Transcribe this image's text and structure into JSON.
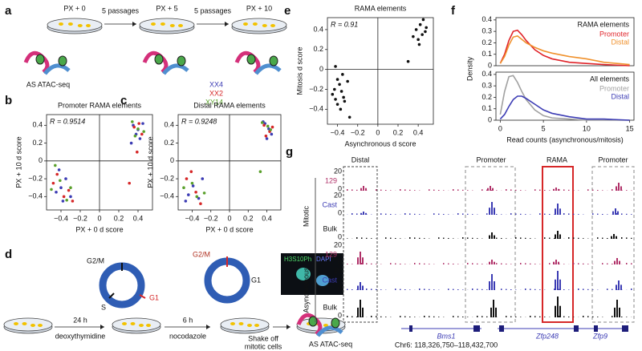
{
  "panel_labels": [
    "a",
    "b",
    "c",
    "d",
    "e",
    "f",
    "g"
  ],
  "panel_a": {
    "stages": [
      "PX + 0",
      "PX + 5",
      "PX + 10"
    ],
    "steps": [
      "5 passages",
      "5 passages"
    ],
    "method": "AS ATAC-seq"
  },
  "panel_d": {
    "cycle_1": [
      "G2/M",
      "S",
      "G1"
    ],
    "cycle_2": [
      "G2/M",
      "G1"
    ],
    "steps": [
      {
        "top": "24 h",
        "bottom": "deoxythymidine"
      },
      {
        "top": "6 h",
        "bottom": "nocodazole"
      },
      {
        "top": "Shake off",
        "bottom": "mitotic cells"
      }
    ],
    "stains": [
      "H3S10Ph",
      "DAPI"
    ],
    "method": "AS ATAC-seq"
  },
  "panel_g": {
    "regions": [
      "Distal",
      "Promoter",
      "RAMA",
      "Promoter"
    ],
    "conditions": [
      "Mitotic",
      "Asynchronous"
    ],
    "tracks": [
      "129",
      "Cast",
      "Bulk"
    ],
    "scale_max": 20,
    "scale_min": 0,
    "genes": [
      "Bms1",
      "Zfp248",
      "Zfp9"
    ],
    "locus": "Chr6: 118,326,750–118,432,700"
  },
  "chart_data": [
    {
      "type": "scatter",
      "title": "Promoter RAMA elements",
      "annotation": "R = 0.9514",
      "xlabel": "PX + 0 d score",
      "ylabel": "PX + 10 d score",
      "xlim": [
        -0.55,
        0.55
      ],
      "ylim": [
        -0.55,
        0.52
      ],
      "xticks": [
        {
          "value": -0.4,
          "label": "−0.4"
        },
        {
          "value": -0.2,
          "label": "−0.2"
        },
        0,
        0.2,
        0.4
      ],
      "yticks": [
        {
          "value": -0.4,
          "label": "−0.4"
        },
        {
          "value": -0.2,
          "label": "−0.2"
        },
        0,
        0.2,
        0.4
      ],
      "series": [
        {
          "name": "XX4",
          "color": "#3c3cb4",
          "x": [
            -0.45,
            -0.4,
            -0.35,
            -0.3,
            -0.42,
            -0.38,
            0.35,
            0.4,
            0.42,
            0.45,
            0.38,
            0.33
          ],
          "values": [
            -0.35,
            -0.3,
            -0.2,
            -0.4,
            -0.1,
            -0.45,
            0.4,
            0.35,
            0.25,
            0.42,
            0.3,
            0.2
          ]
        },
        {
          "name": "XX2",
          "color": "#d62728",
          "x": [
            -0.48,
            -0.37,
            -0.32,
            -0.44,
            -0.28,
            0.36,
            0.41,
            0.44,
            0.39,
            0.31
          ],
          "values": [
            -0.25,
            -0.4,
            -0.33,
            -0.15,
            -0.45,
            0.38,
            0.42,
            0.3,
            0.1,
            -0.25
          ]
        },
        {
          "name": "XY14",
          "color": "#5aa02c",
          "x": [
            -0.5,
            -0.41,
            -0.34,
            -0.3,
            -0.46,
            0.34,
            0.4,
            0.46,
            0.37
          ],
          "values": [
            -0.32,
            -0.22,
            -0.44,
            -0.3,
            -0.05,
            0.44,
            0.36,
            0.33,
            0.28
          ]
        }
      ]
    },
    {
      "type": "scatter",
      "title": "Distal RAMA elements",
      "annotation": "R = 0.9248",
      "xlabel": "PX + 0 d score",
      "ylabel": "PX + 10 d score",
      "xlim": [
        -0.55,
        0.55
      ],
      "ylim": [
        -0.55,
        0.52
      ],
      "xticks": [
        {
          "value": -0.4,
          "label": "−0.4"
        },
        {
          "value": -0.2,
          "label": "−0.2"
        },
        0,
        0.2,
        0.4
      ],
      "yticks": [
        {
          "value": -0.4,
          "label": "−0.4"
        },
        {
          "value": -0.2,
          "label": "−0.2"
        },
        0,
        0.2,
        0.4
      ],
      "series": [
        {
          "color": "#3c3cb4",
          "x": [
            -0.44,
            -0.39,
            -0.33,
            -0.29,
            -0.47,
            0.38,
            0.42,
            0.45,
            0.4,
            0.36
          ],
          "values": [
            -0.38,
            -0.28,
            -0.42,
            -0.2,
            -0.45,
            0.42,
            0.36,
            0.3,
            0.25,
            0.44
          ]
        },
        {
          "color": "#d62728",
          "x": [
            -0.46,
            -0.36,
            -0.31,
            -0.41,
            0.37,
            0.43,
            0.46,
            0.39
          ],
          "values": [
            -0.2,
            -0.35,
            -0.48,
            -0.12,
            0.4,
            0.33,
            0.38,
            0.28
          ]
        },
        {
          "color": "#5aa02c",
          "x": [
            -0.49,
            -0.4,
            -0.35,
            -0.27,
            0.35,
            0.41,
            0.44,
            0.33
          ],
          "values": [
            -0.3,
            -0.25,
            -0.4,
            -0.36,
            0.43,
            0.39,
            0.35,
            -0.12
          ]
        }
      ]
    },
    {
      "type": "scatter",
      "title": "RAMA elements",
      "annotation": "R = 0.91",
      "xlabel": "Asynchronous d score",
      "ylabel": "Mitosis d score",
      "xlim": [
        -0.5,
        0.55
      ],
      "ylim": [
        -0.55,
        0.52
      ],
      "xticks": [
        {
          "value": -0.4,
          "label": "−0.4"
        },
        {
          "value": -0.2,
          "label": "−0.2"
        },
        0,
        0.2,
        0.4
      ],
      "yticks": [
        {
          "value": -0.4,
          "label": "−0.4"
        },
        {
          "value": -0.2,
          "label": "−0.2"
        },
        0,
        0.2,
        0.4
      ],
      "series": [
        {
          "color": "#111111",
          "x": [
            -0.45,
            -0.43,
            -0.42,
            -0.4,
            -0.4,
            -0.38,
            -0.37,
            -0.35,
            -0.34,
            -0.33,
            -0.3,
            -0.28,
            -0.42,
            -0.36,
            0.35,
            0.38,
            0.4,
            0.42,
            0.45,
            0.47,
            0.48,
            0.3,
            0.44,
            0.41
          ],
          "values": [
            -0.25,
            -0.2,
            -0.3,
            -0.1,
            -0.35,
            -0.15,
            -0.4,
            -0.05,
            -0.28,
            -0.32,
            -0.12,
            -0.48,
            0.03,
            -0.22,
            0.33,
            0.4,
            0.3,
            0.45,
            0.5,
            0.38,
            0.42,
            0.08,
            0.35,
            0.25
          ]
        }
      ]
    },
    {
      "type": "line",
      "annotation": "RAMA elements",
      "ylabel": "Density",
      "x": [
        0,
        0.5,
        1,
        1.5,
        2,
        2.5,
        3,
        4,
        5,
        6,
        8,
        10,
        12,
        15
      ],
      "xlim": [
        -0.5,
        15.5
      ],
      "ylim": [
        0,
        0.42
      ],
      "yticks": [
        0,
        0.1,
        0.2,
        0.3,
        0.4
      ],
      "series": [
        {
          "name": "Promoter",
          "color": "#e0242a",
          "values": [
            0.02,
            0.1,
            0.22,
            0.3,
            0.31,
            0.27,
            0.22,
            0.14,
            0.09,
            0.06,
            0.03,
            0.02,
            0.01,
            0
          ]
        },
        {
          "name": "Distal",
          "color": "#f0922e",
          "values": [
            0.02,
            0.08,
            0.18,
            0.25,
            0.26,
            0.23,
            0.2,
            0.16,
            0.13,
            0.11,
            0.08,
            0.06,
            0.03,
            0.01
          ]
        }
      ]
    },
    {
      "type": "line",
      "annotation": "All elements",
      "xlabel": "Read counts (asynchronous/mitosis)",
      "x": [
        0,
        0.5,
        1,
        1.5,
        2,
        2.5,
        3,
        4,
        5,
        6,
        8,
        10,
        12,
        15
      ],
      "xlim": [
        -0.5,
        15.5
      ],
      "ylim": [
        0,
        0.42
      ],
      "yticks": [
        0,
        0.1,
        0.2,
        0.3,
        0.4
      ],
      "xticks": [
        0,
        5,
        10,
        15
      ],
      "series": [
        {
          "name": "Promoter",
          "color": "#a0a0a0",
          "values": [
            0.05,
            0.25,
            0.38,
            0.39,
            0.33,
            0.25,
            0.18,
            0.09,
            0.04,
            0.02,
            0.01,
            0,
            0,
            0
          ]
        },
        {
          "name": "Distal",
          "color": "#3c3cb4",
          "values": [
            0.01,
            0.05,
            0.12,
            0.18,
            0.21,
            0.21,
            0.19,
            0.14,
            0.09,
            0.06,
            0.03,
            0.01,
            0.01,
            0
          ]
        }
      ]
    }
  ]
}
